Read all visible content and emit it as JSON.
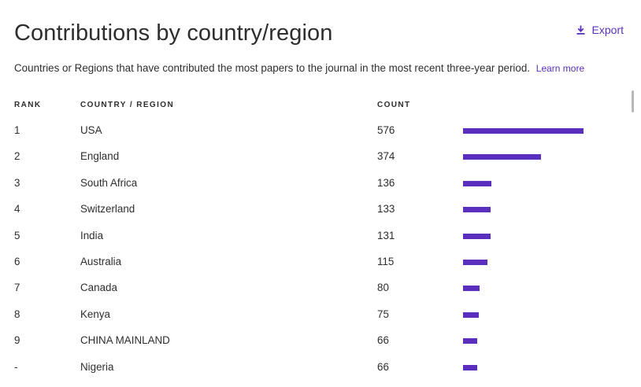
{
  "header": {
    "title": "Contributions by country/region",
    "export_label": "Export",
    "description": "Countries or Regions that have contributed the most papers to the journal in the most recent three-year period.",
    "learn_more": "Learn more"
  },
  "columns": {
    "rank": "RANK",
    "country": "COUNTRY / REGION",
    "count": "COUNT"
  },
  "colors": {
    "accent": "#5b2fbd",
    "text": "#2e2e2e"
  },
  "icons": {
    "export": "download-icon"
  },
  "rows": [
    {
      "rank": "1",
      "country": "USA",
      "count": "576"
    },
    {
      "rank": "2",
      "country": "England",
      "count": "374"
    },
    {
      "rank": "3",
      "country": "South Africa",
      "count": "136"
    },
    {
      "rank": "4",
      "country": "Switzerland",
      "count": "133"
    },
    {
      "rank": "5",
      "country": "India",
      "count": "131"
    },
    {
      "rank": "6",
      "country": "Australia",
      "count": "115"
    },
    {
      "rank": "7",
      "country": "Canada",
      "count": "80"
    },
    {
      "rank": "8",
      "country": "Kenya",
      "count": "75"
    },
    {
      "rank": "9",
      "country": "CHINA MAINLAND",
      "count": "66"
    },
    {
      "rank": "-",
      "country": "Nigeria",
      "count": "66"
    }
  ]
}
